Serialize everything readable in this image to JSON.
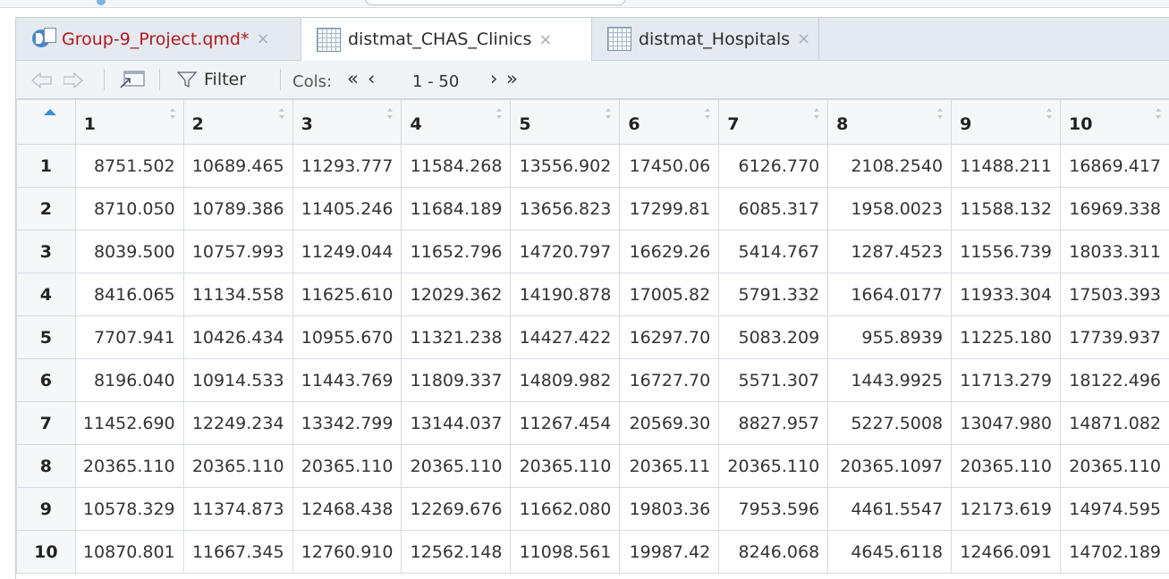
{
  "tabs": [
    {
      "label": "Group-9_Project.qmd*",
      "icon": "quarto-file-icon",
      "active": false,
      "modified": true
    },
    {
      "label": "distmat_CHAS_Clinics",
      "icon": "data-grid-icon",
      "active": true,
      "modified": false
    },
    {
      "label": "distmat_Hospitals",
      "icon": "data-grid-icon",
      "active": false,
      "modified": false
    }
  ],
  "close_glyph": "×",
  "toolbar": {
    "filter_label": "Filter",
    "cols_label": "Cols:",
    "cols_first": "«",
    "cols_prev": "‹",
    "cols_range": "1 - 50",
    "cols_next": "›",
    "cols_last": "»"
  },
  "table": {
    "columns": [
      "1",
      "2",
      "3",
      "4",
      "5",
      "6",
      "7",
      "8",
      "9",
      "10"
    ],
    "rows": [
      {
        "id": "1",
        "cells": [
          "8751.502",
          "10689.465",
          "11293.777",
          "11584.268",
          "13556.902",
          "17450.06",
          "6126.770",
          "2108.2540",
          "11488.211",
          "16869.417"
        ]
      },
      {
        "id": "2",
        "cells": [
          "8710.050",
          "10789.386",
          "11405.246",
          "11684.189",
          "13656.823",
          "17299.81",
          "6085.317",
          "1958.0023",
          "11588.132",
          "16969.338"
        ]
      },
      {
        "id": "3",
        "cells": [
          "8039.500",
          "10757.993",
          "11249.044",
          "11652.796",
          "14720.797",
          "16629.26",
          "5414.767",
          "1287.4523",
          "11556.739",
          "18033.311"
        ]
      },
      {
        "id": "4",
        "cells": [
          "8416.065",
          "11134.558",
          "11625.610",
          "12029.362",
          "14190.878",
          "17005.82",
          "5791.332",
          "1664.0177",
          "11933.304",
          "17503.393"
        ]
      },
      {
        "id": "5",
        "cells": [
          "7707.941",
          "10426.434",
          "10955.670",
          "11321.238",
          "14427.422",
          "16297.70",
          "5083.209",
          "955.8939",
          "11225.180",
          "17739.937"
        ]
      },
      {
        "id": "6",
        "cells": [
          "8196.040",
          "10914.533",
          "11443.769",
          "11809.337",
          "14809.982",
          "16727.70",
          "5571.307",
          "1443.9925",
          "11713.279",
          "18122.496"
        ]
      },
      {
        "id": "7",
        "cells": [
          "11452.690",
          "12249.234",
          "13342.799",
          "13144.037",
          "11267.454",
          "20569.30",
          "8827.957",
          "5227.5008",
          "13047.980",
          "14871.082"
        ]
      },
      {
        "id": "8",
        "cells": [
          "20365.110",
          "20365.110",
          "20365.110",
          "20365.110",
          "20365.110",
          "20365.11",
          "20365.110",
          "20365.1097",
          "20365.110",
          "20365.110"
        ]
      },
      {
        "id": "9",
        "cells": [
          "10578.329",
          "11374.873",
          "12468.438",
          "12269.676",
          "11662.080",
          "19803.36",
          "7953.596",
          "4461.5547",
          "12173.619",
          "14974.595"
        ]
      },
      {
        "id": "10",
        "cells": [
          "10870.801",
          "11667.345",
          "12760.910",
          "12562.148",
          "11098.561",
          "19987.42",
          "8246.068",
          "4645.6118",
          "12466.091",
          "14702.189"
        ]
      }
    ]
  }
}
